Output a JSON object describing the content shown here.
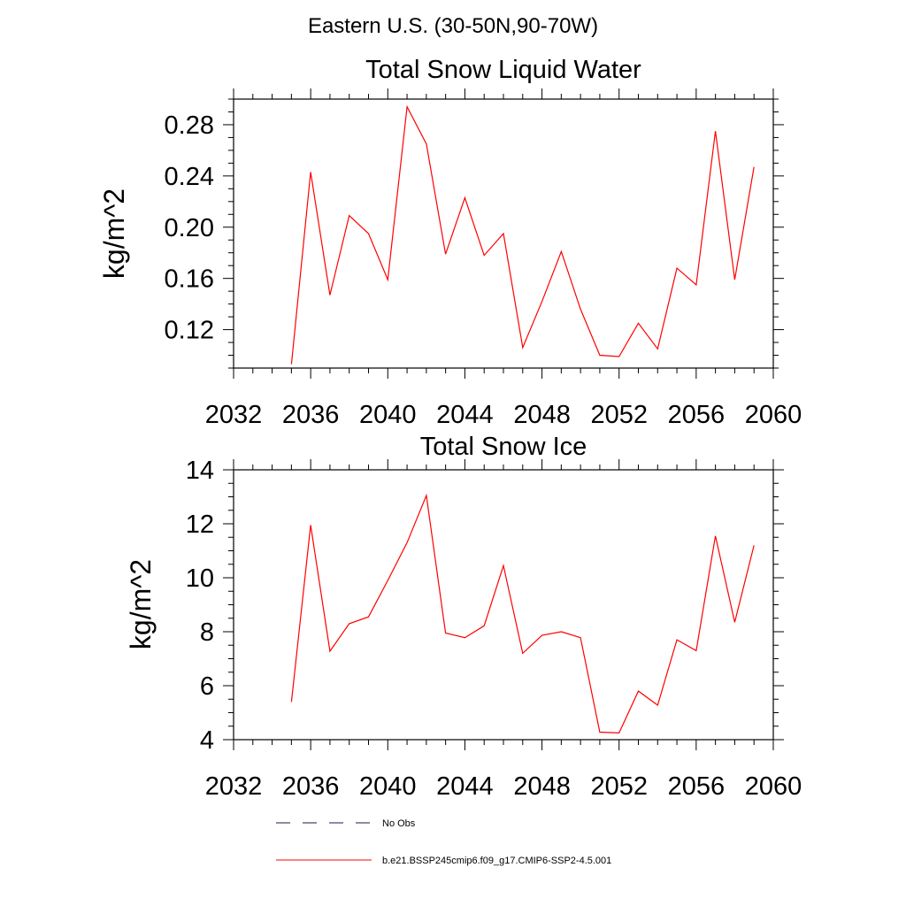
{
  "figure": {
    "title": "Eastern U.S. (30-50N,90-70W)"
  },
  "legend": {
    "items": [
      {
        "label": "No Obs",
        "style": "dashed",
        "color": "#1a1a4d"
      },
      {
        "label": "b.e21.BSSP245cmip6.f09_g17.CMIP6-SSP2-4.5.001",
        "style": "solid",
        "color": "#ff0000"
      }
    ]
  },
  "chart_data": [
    {
      "type": "line",
      "title": "Total Snow Liquid Water",
      "ylabel": "kg/m^2",
      "xlabel": "",
      "xlim": [
        2032,
        2060
      ],
      "ylim": [
        0.09,
        0.3
      ],
      "xticks": [
        2032,
        2036,
        2040,
        2044,
        2048,
        2052,
        2056,
        2060
      ],
      "xminor": 1,
      "yticks": [
        0.12,
        0.16,
        0.2,
        0.24,
        0.28
      ],
      "ytick_labels": [
        "0.12",
        "0.16",
        "0.20",
        "0.24",
        "0.28"
      ],
      "yminor": 0.01,
      "grid": false,
      "series": [
        {
          "name": "b.e21.BSSP245cmip6.f09_g17.CMIP6-SSP2-4.5.001",
          "color": "#ff0000",
          "x": [
            2035,
            2036,
            2037,
            2038,
            2039,
            2040,
            2041,
            2042,
            2043,
            2044,
            2045,
            2046,
            2047,
            2048,
            2049,
            2050,
            2051,
            2052,
            2053,
            2054,
            2055,
            2056,
            2057,
            2058,
            2059
          ],
          "y": [
            0.093,
            0.243,
            0.147,
            0.209,
            0.195,
            0.159,
            0.294,
            0.265,
            0.179,
            0.223,
            0.178,
            0.195,
            0.106,
            0.142,
            0.181,
            0.136,
            0.1,
            0.099,
            0.125,
            0.105,
            0.168,
            0.155,
            0.275,
            0.159,
            0.247
          ]
        }
      ]
    },
    {
      "type": "line",
      "title": "Total Snow Ice",
      "ylabel": "kg/m^2",
      "xlabel": "",
      "xlim": [
        2032,
        2060
      ],
      "ylim": [
        4,
        14
      ],
      "xticks": [
        2032,
        2036,
        2040,
        2044,
        2048,
        2052,
        2056,
        2060
      ],
      "xminor": 1,
      "yticks": [
        4,
        6,
        8,
        10,
        12,
        14
      ],
      "ytick_labels": [
        "4",
        "6",
        "8",
        "10",
        "12",
        "14"
      ],
      "yminor": 0.5,
      "grid": false,
      "series": [
        {
          "name": "b.e21.BSSP245cmip6.f09_g17.CMIP6-SSP2-4.5.001",
          "color": "#ff0000",
          "x": [
            2035,
            2036,
            2037,
            2038,
            2039,
            2040,
            2041,
            2042,
            2043,
            2044,
            2045,
            2046,
            2047,
            2048,
            2049,
            2050,
            2051,
            2052,
            2053,
            2054,
            2055,
            2056,
            2057,
            2058,
            2059
          ],
          "y": [
            5.4,
            11.95,
            7.28,
            8.3,
            8.55,
            9.9,
            11.3,
            13.05,
            7.95,
            7.78,
            8.22,
            10.45,
            7.2,
            7.87,
            8.0,
            7.78,
            4.28,
            4.25,
            5.8,
            5.28,
            7.7,
            7.3,
            11.55,
            8.35,
            11.2
          ]
        }
      ]
    }
  ]
}
